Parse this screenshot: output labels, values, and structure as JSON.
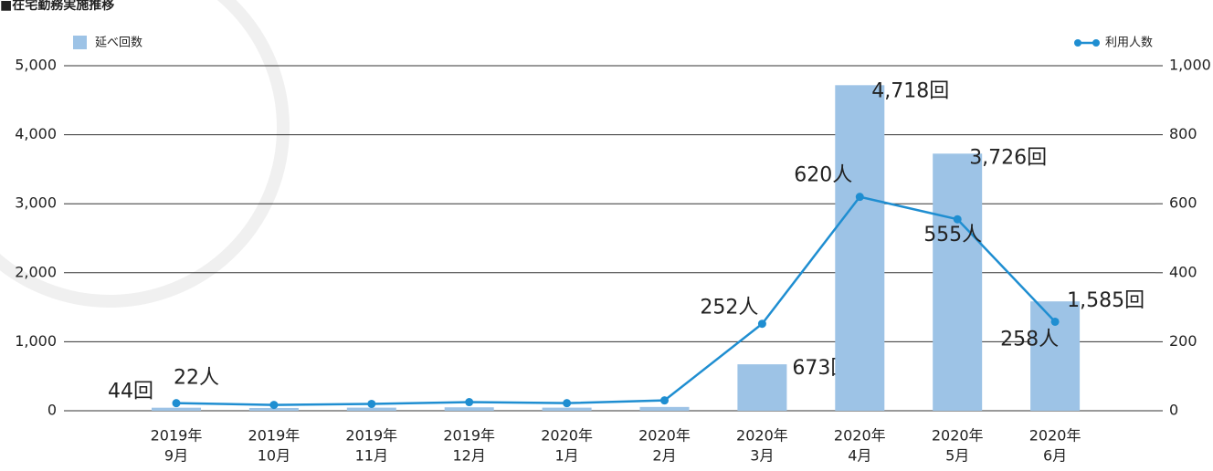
{
  "chart_data": {
    "type": "bar-line",
    "title": "■在宅勤務実施推移",
    "categories": [
      [
        "2019年",
        "9月"
      ],
      [
        "2019年",
        "10月"
      ],
      [
        "2019年",
        "11月"
      ],
      [
        "2019年",
        "12月"
      ],
      [
        "2020年",
        "1月"
      ],
      [
        "2020年",
        "2月"
      ],
      [
        "2020年",
        "3月"
      ],
      [
        "2020年",
        "4月"
      ],
      [
        "2020年",
        "5月"
      ],
      [
        "2020年",
        "6月"
      ]
    ],
    "series": [
      {
        "name": "延べ回数",
        "color": "#9dc3e6",
        "kind": "bar",
        "axis": "y",
        "values": [
          44,
          40,
          45,
          50,
          45,
          55,
          673,
          4718,
          3726,
          1585
        ],
        "value_labels": [
          "44回",
          null,
          null,
          null,
          null,
          null,
          "673回",
          "4,718回",
          "3,726回",
          "1,585回"
        ]
      },
      {
        "name": "利用人数",
        "color": "#1f8ed1",
        "kind": "line",
        "axis": "y2",
        "values": [
          22,
          17,
          20,
          25,
          22,
          30,
          252,
          620,
          555,
          258
        ],
        "value_labels": [
          "22人",
          null,
          null,
          null,
          null,
          null,
          "252人",
          "620人",
          "555人",
          "258人"
        ]
      }
    ],
    "ylim": [
      0,
      5000
    ],
    "yticks": [
      0,
      {
        "value": 1000,
        "label": "1,000"
      },
      {
        "value": 2000,
        "label": "2,000"
      },
      {
        "value": 3000,
        "label": "3,000"
      },
      {
        "value": 4000,
        "label": "4,000"
      },
      {
        "value": 5000,
        "label": "5,000"
      }
    ],
    "y2lim": [
      0,
      1000
    ],
    "y2ticks": [
      0,
      200,
      400,
      600,
      800,
      {
        "value": 1000,
        "label": "1,000"
      }
    ],
    "grid": true
  }
}
